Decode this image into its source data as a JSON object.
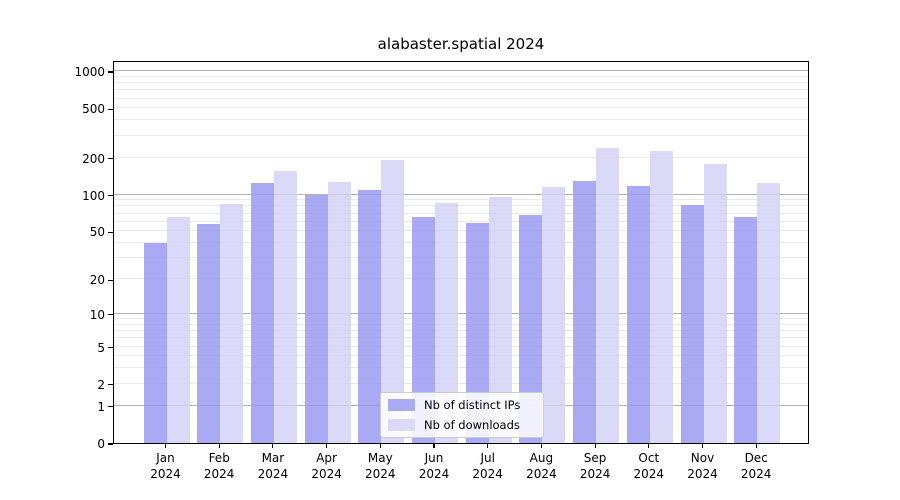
{
  "title": "alabaster.spatial 2024",
  "year_label": "2024",
  "chart_data": {
    "type": "bar",
    "categories": [
      "Jan 2024",
      "Feb 2024",
      "Mar 2024",
      "Apr 2024",
      "May 2024",
      "Jun 2024",
      "Jul 2024",
      "Aug 2024",
      "Sep 2024",
      "Oct 2024",
      "Nov 2024",
      "Dec 2024"
    ],
    "month_labels": [
      "Jan",
      "Feb",
      "Mar",
      "Apr",
      "May",
      "Jun",
      "Jul",
      "Aug",
      "Sep",
      "Oct",
      "Nov",
      "Dec"
    ],
    "series": [
      {
        "name": "Nb of distinct IPs",
        "color": "rgba(147,147,241,0.8)",
        "values": [
          40,
          57,
          124,
          100,
          109,
          66,
          59,
          68,
          128,
          118,
          82,
          66
        ]
      },
      {
        "name": "Nb of downloads",
        "color": "rgba(209,209,246,0.8)",
        "values": [
          65,
          84,
          156,
          127,
          191,
          86,
          95,
          115,
          237,
          226,
          177,
          124
        ]
      }
    ],
    "title": "alabaster.spatial 2024",
    "xlabel": "",
    "ylabel": "",
    "yscale": "log1p",
    "ylim": [
      0,
      1228
    ],
    "yticks": [
      0,
      1,
      2,
      5,
      10,
      20,
      50,
      100,
      200,
      500,
      1000
    ],
    "yticklabels": [
      "0",
      "1",
      "2",
      "5",
      "10",
      "20",
      "50",
      "100",
      "200",
      "500",
      "1000"
    ],
    "grid": true,
    "legend_position": "lower center",
    "major_grid_values": [
      1,
      10,
      100,
      1000
    ],
    "grid_major_color": "#b3b3b3",
    "grid_minor_color": "#eaeaea"
  }
}
